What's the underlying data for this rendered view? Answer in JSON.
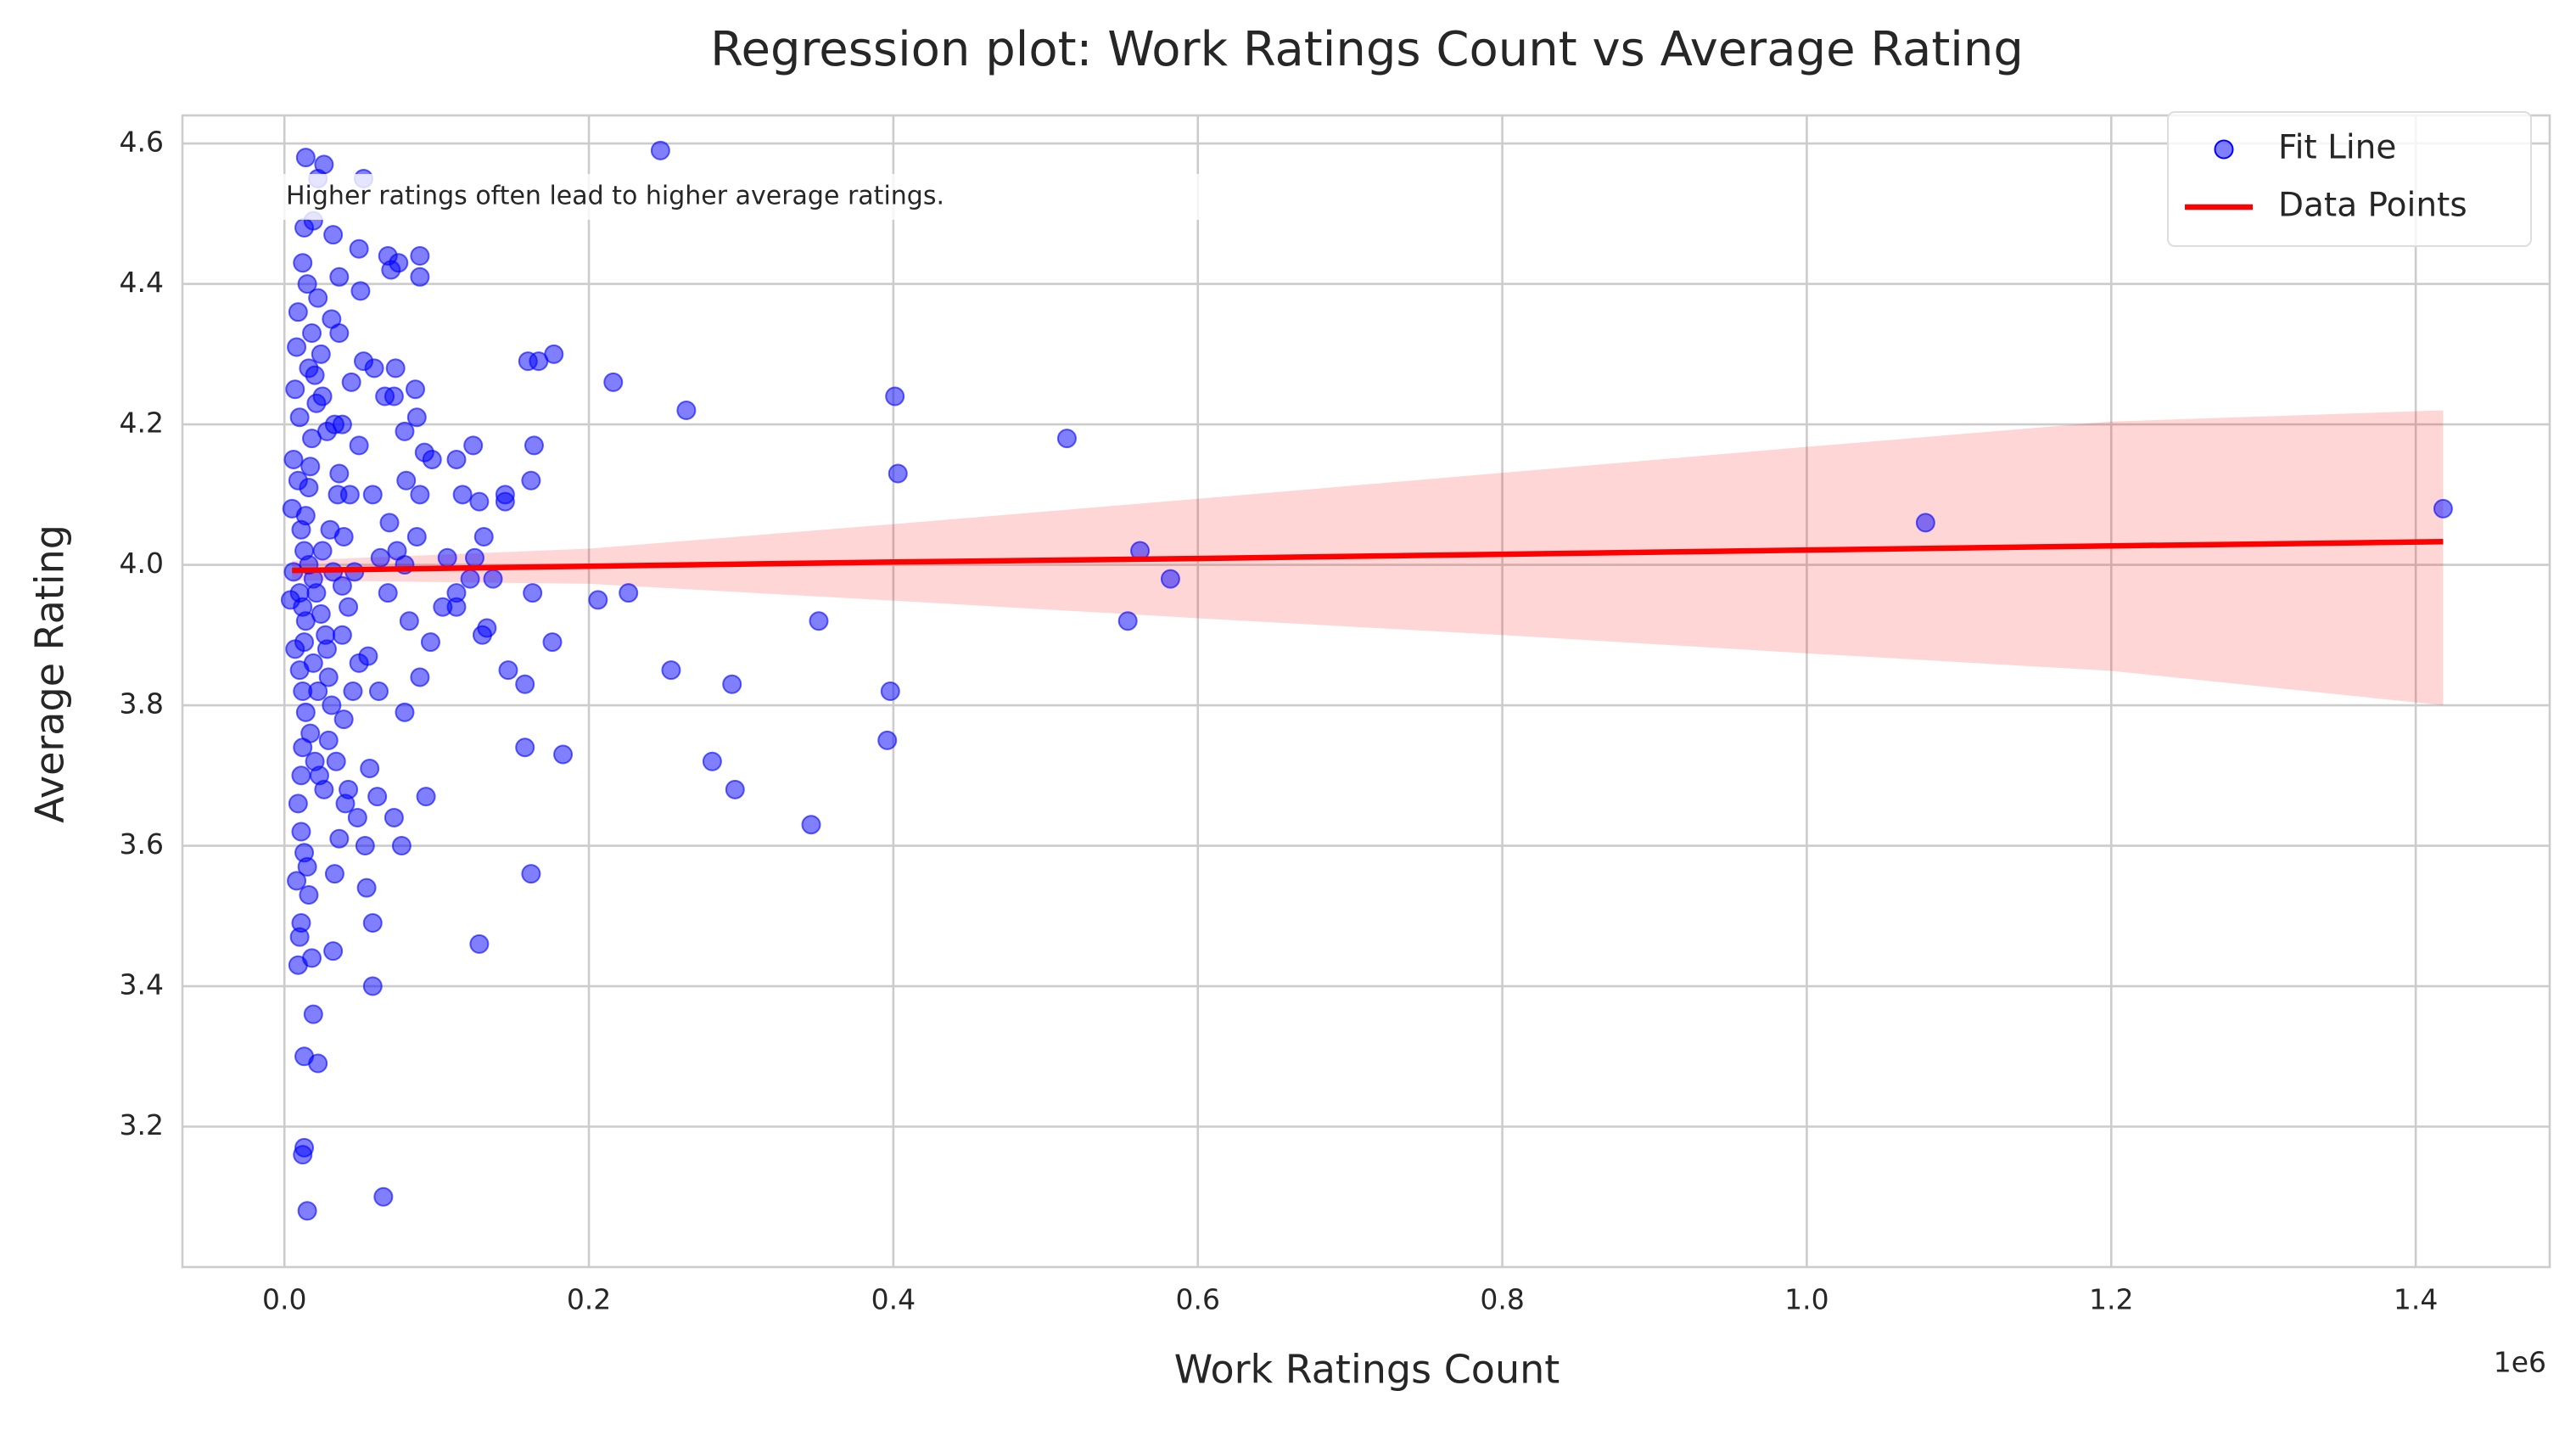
{
  "chart_data": {
    "type": "scatter",
    "title": "Regression plot: Work Ratings Count vs Average Rating",
    "x_label": "Work Ratings Count",
    "y_label": "Average Rating",
    "x_offset_label": "1e6",
    "annotation": "Higher ratings often lead to higher average ratings.",
    "xlim": [
      -67000,
      1488000
    ],
    "ylim": [
      3.0,
      4.64
    ],
    "xticks": [
      {
        "value": 0,
        "label": "0.0"
      },
      {
        "value": 200000,
        "label": "0.2"
      },
      {
        "value": 400000,
        "label": "0.4"
      },
      {
        "value": 600000,
        "label": "0.6"
      },
      {
        "value": 800000,
        "label": "0.8"
      },
      {
        "value": 1000000,
        "label": "1.0"
      },
      {
        "value": 1200000,
        "label": "1.2"
      },
      {
        "value": 1400000,
        "label": "1.4"
      }
    ],
    "yticks": [
      3.2,
      3.4,
      3.6,
      3.8,
      {
        "value": 4,
        "label": "4.0"
      },
      4.2,
      4.4,
      4.6
    ],
    "grid": true,
    "legend": "upper right",
    "series": [
      {
        "name": "Fit Line",
        "kind": "scatter",
        "color": "blue",
        "x": [
          247000,
          1078000,
          1418000,
          514000,
          562000,
          582000,
          554000,
          401000,
          403000,
          398000,
          396000,
          346000,
          351000,
          294000,
          281000,
          296000,
          254000,
          264000,
          216000,
          226000,
          206000,
          177000,
          167000,
          160000,
          164000,
          162000,
          163000,
          176000,
          183000,
          158000,
          162000,
          158000,
          147000,
          145000,
          145000,
          128000,
          124000,
          128000,
          131000,
          133000,
          130000,
          137000,
          125000,
          122000,
          113000,
          117000,
          113000,
          113000,
          107000,
          104000,
          96000,
          97000,
          92000,
          89000,
          87000,
          89000,
          93000,
          86000,
          87000,
          89000,
          89000,
          75000,
          68000,
          70000,
          73000,
          66000,
          72000,
          79000,
          80000,
          69000,
          74000,
          79000,
          82000,
          79000,
          72000,
          77000,
          65000,
          58000,
          58000,
          54000,
          56000,
          53000,
          62000,
          49000,
          50000,
          52000,
          32000,
          26000,
          14000,
          22000,
          19000,
          13000,
          32000,
          19000,
          22000,
          13000,
          13000,
          12000,
          15000,
          9000,
          10000,
          11000,
          18000,
          16000,
          33000,
          36000,
          40000,
          42000,
          48000,
          34000,
          29000,
          39000,
          45000,
          49000,
          38000,
          42000,
          46000,
          39000,
          43000,
          36000,
          49000,
          38000,
          44000,
          36000,
          31000,
          36000,
          52000,
          59000,
          58000,
          55000,
          61000,
          68000,
          63000,
          5000,
          8000,
          10000,
          12000,
          15000,
          18000,
          20000,
          22000,
          25000,
          28000,
          6000,
          9000,
          11000,
          13000,
          16000,
          19000,
          21000,
          24000,
          27000,
          7000,
          10000,
          12000,
          14000,
          17000,
          20000,
          23000,
          26000,
          9000,
          11000,
          13000,
          15000,
          8000,
          12000,
          14000,
          16000,
          18000,
          21000,
          24000,
          10000,
          12000,
          14000,
          17000,
          19000,
          22000,
          25000,
          28000,
          30000,
          32000,
          35000,
          38000,
          33000,
          29000,
          31000,
          6000,
          4000,
          7000,
          9000,
          11000,
          13000,
          16000
        ],
        "values": [
          4.59,
          4.06,
          4.08,
          4.18,
          4.02,
          3.98,
          3.92,
          4.24,
          4.13,
          3.82,
          3.75,
          3.63,
          3.92,
          3.83,
          3.72,
          3.68,
          3.85,
          4.22,
          4.26,
          3.96,
          3.95,
          4.3,
          4.29,
          4.29,
          4.17,
          4.12,
          3.96,
          3.89,
          3.73,
          3.74,
          3.56,
          3.83,
          3.85,
          4.1,
          4.09,
          3.46,
          4.17,
          4.09,
          4.04,
          3.91,
          3.9,
          3.98,
          4.01,
          3.98,
          4.15,
          4.1,
          3.96,
          3.94,
          4.01,
          3.94,
          3.89,
          4.15,
          4.16,
          4.1,
          4.04,
          3.84,
          3.67,
          4.25,
          4.21,
          4.41,
          4.44,
          4.43,
          4.44,
          4.42,
          4.28,
          4.24,
          4.24,
          4.19,
          4.12,
          4.06,
          4.02,
          4.0,
          3.92,
          3.79,
          3.64,
          3.6,
          3.1,
          3.4,
          3.49,
          3.54,
          3.71,
          3.6,
          3.82,
          4.45,
          4.39,
          4.55,
          4.47,
          4.57,
          4.58,
          4.55,
          4.49,
          4.48,
          3.45,
          3.36,
          3.29,
          3.3,
          3.17,
          3.16,
          3.08,
          3.43,
          3.47,
          3.49,
          3.44,
          3.53,
          3.56,
          3.61,
          3.66,
          3.68,
          3.64,
          3.72,
          3.75,
          3.78,
          3.82,
          3.86,
          3.9,
          3.94,
          3.99,
          4.04,
          4.1,
          4.13,
          4.17,
          4.2,
          4.26,
          4.33,
          4.35,
          4.41,
          4.29,
          4.28,
          4.1,
          3.87,
          3.67,
          3.96,
          4.01,
          4.08,
          4.31,
          4.21,
          4.43,
          4.4,
          4.33,
          4.27,
          4.38,
          4.24,
          4.19,
          4.15,
          4.12,
          4.05,
          4.02,
          4.0,
          3.98,
          3.96,
          3.93,
          3.9,
          3.88,
          3.85,
          3.82,
          3.79,
          3.76,
          3.72,
          3.7,
          3.68,
          3.66,
          3.62,
          3.59,
          3.57,
          3.55,
          3.74,
          3.92,
          4.11,
          4.18,
          4.23,
          4.3,
          3.96,
          3.94,
          4.07,
          4.14,
          3.86,
          3.82,
          4.02,
          3.88,
          4.05,
          3.99,
          4.1,
          3.97,
          4.2,
          3.84,
          3.8,
          3.99,
          3.95,
          4.25,
          4.36,
          3.7,
          3.89,
          4.28
        ]
      },
      {
        "name": "Data Points",
        "kind": "line",
        "color": "red",
        "x": [
          5000,
          200000,
          400000,
          600000,
          800000,
          1000000,
          1200000,
          1418000
        ],
        "values": [
          3.992,
          3.998,
          4.004,
          4.009,
          4.015,
          4.021,
          4.027,
          4.033
        ],
        "ci_lower": [
          3.978,
          3.973,
          3.949,
          3.924,
          3.9,
          3.874,
          3.849,
          3.8
        ],
        "ci_upper": [
          4.006,
          4.023,
          4.058,
          4.094,
          4.131,
          4.168,
          4.204,
          4.22
        ]
      }
    ]
  }
}
